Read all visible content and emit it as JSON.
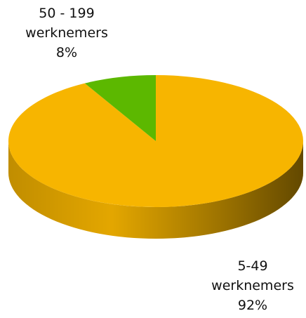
{
  "chart_data": {
    "type": "pie",
    "categories": [
      "5-49 werknemers",
      "50 - 199 werknemers"
    ],
    "values": [
      92,
      8
    ],
    "value_labels": [
      "92%",
      "8%"
    ],
    "colors": [
      "#f7b500",
      "#5cb800"
    ]
  }
}
